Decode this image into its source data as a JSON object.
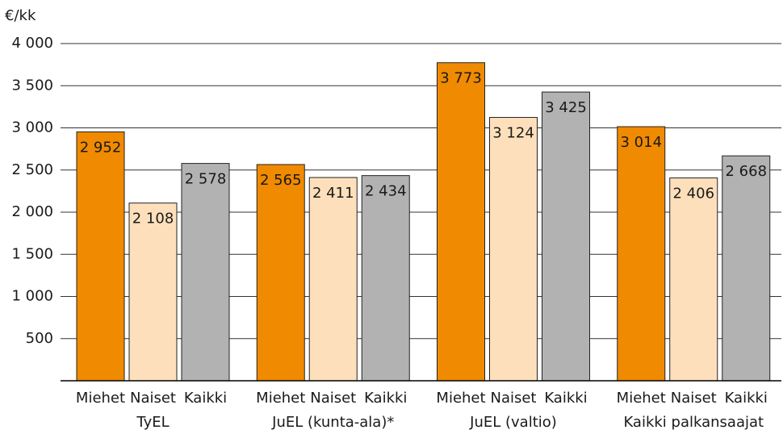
{
  "chart_data": {
    "type": "bar",
    "y_label": "€/kk",
    "categories": [
      "TyEL",
      "JuEL (kunta-ala)*",
      "JuEL (valtio)",
      "Kaikki palkansaajat"
    ],
    "series": [
      {
        "name": "Miehet",
        "color": "#f08a00",
        "values": [
          2952,
          2565,
          3773,
          3014
        ],
        "value_labels": [
          "2 952",
          "2 565",
          "3 773",
          "3 014"
        ]
      },
      {
        "name": "Naiset",
        "color": "#fde0bb",
        "values": [
          2108,
          2411,
          3124,
          2406
        ],
        "value_labels": [
          "2 108",
          "2 411",
          "3 124",
          "2 406"
        ]
      },
      {
        "name": "Kaikki",
        "color": "#b2b2b2",
        "values": [
          2578,
          2434,
          3425,
          2668
        ],
        "value_labels": [
          "2 578",
          "2 434",
          "3 425",
          "2 668"
        ]
      }
    ],
    "ylim": [
      0,
      4000
    ],
    "yticks": [
      {
        "value": 500,
        "label": "500"
      },
      {
        "value": 1000,
        "label": "1 000"
      },
      {
        "value": 1500,
        "label": "1 500"
      },
      {
        "value": 2000,
        "label": "2 000"
      },
      {
        "value": 2500,
        "label": "2 500"
      },
      {
        "value": 3000,
        "label": "3 000"
      },
      {
        "value": 3500,
        "label": "3 500"
      },
      {
        "value": 4000,
        "label": "4 000"
      }
    ],
    "grid": true
  }
}
